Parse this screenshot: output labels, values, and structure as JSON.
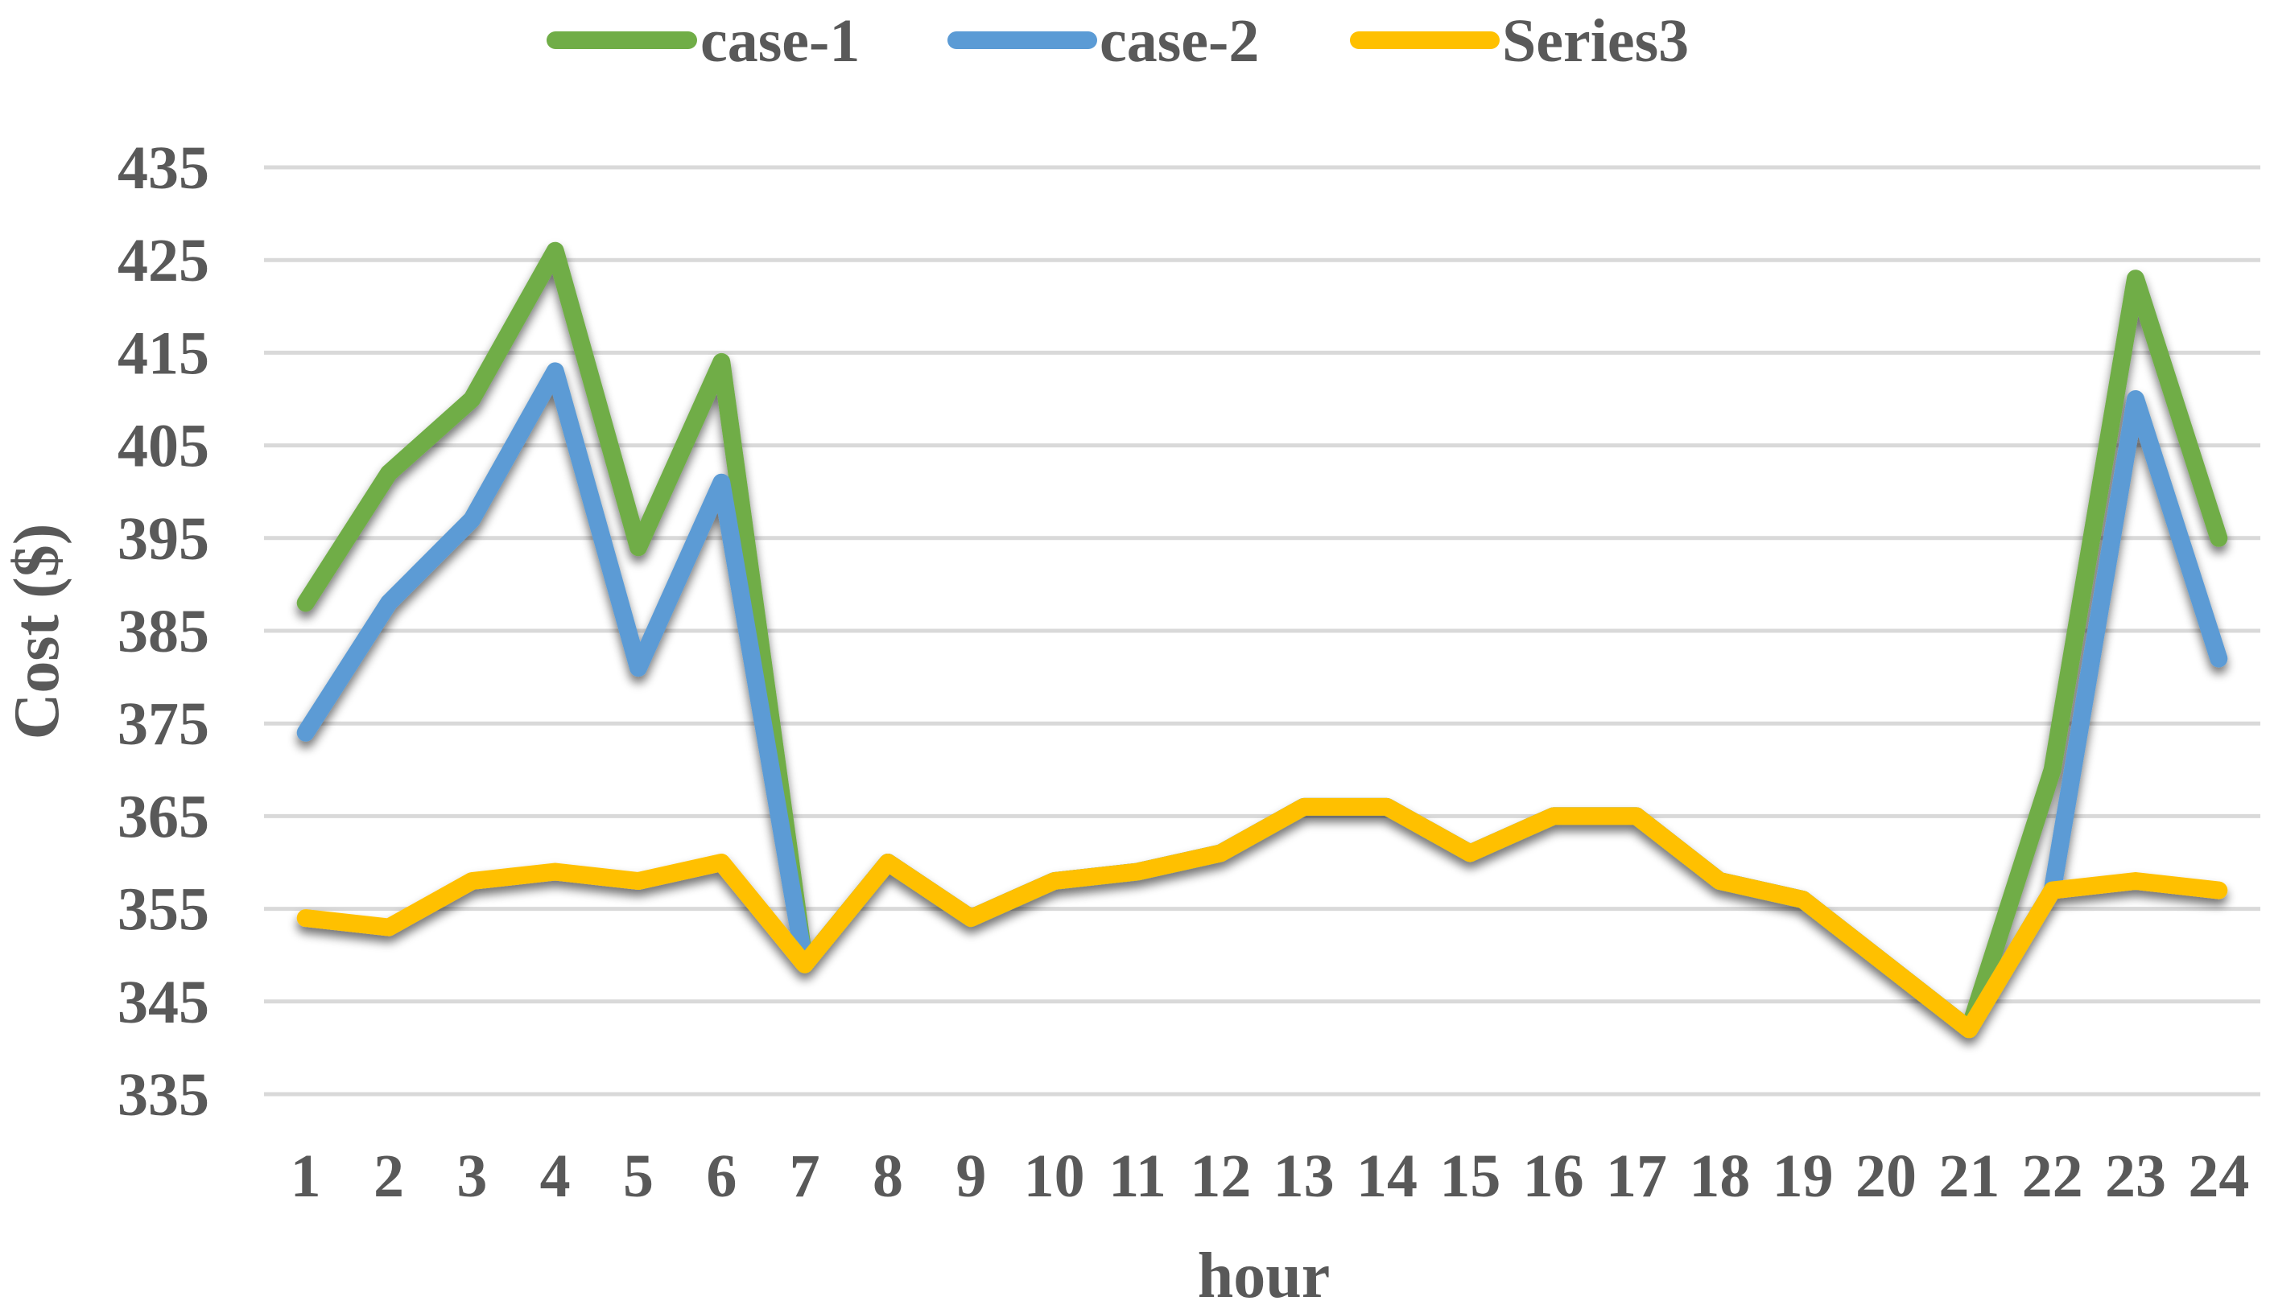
{
  "chart_data": {
    "type": "line",
    "title": "",
    "xlabel": "hour",
    "ylabel": "Cost ($)",
    "ylim": [
      335,
      435
    ],
    "yticks": [
      335,
      345,
      355,
      365,
      375,
      385,
      395,
      405,
      415,
      425,
      435
    ],
    "categories": [
      "1",
      "2",
      "3",
      "4",
      "5",
      "6",
      "7",
      "8",
      "9",
      "10",
      "11",
      "12",
      "13",
      "14",
      "15",
      "16",
      "17",
      "18",
      "19",
      "20",
      "21",
      "22",
      "23",
      "24"
    ],
    "grid": true,
    "legend_position": "top",
    "series": [
      {
        "name": "case-1",
        "color": "#70ad47",
        "values": [
          388,
          402,
          410,
          426,
          394,
          414,
          349,
          360,
          354,
          358,
          359,
          361,
          366,
          366,
          361,
          365,
          365,
          358,
          356,
          349,
          342,
          370,
          423,
          395
        ]
      },
      {
        "name": "case-2",
        "color": "#5b9bd5",
        "values": [
          374,
          388,
          397,
          413,
          381,
          401,
          349,
          360,
          354,
          358,
          359,
          361,
          366,
          366,
          361,
          365,
          365,
          358,
          356,
          349,
          342,
          357,
          410,
          382
        ]
      },
      {
        "name": "Series3",
        "color": "#ffc000",
        "values": [
          354,
          353,
          358,
          359,
          358,
          360,
          349,
          360,
          354,
          358,
          359,
          361,
          366,
          366,
          361,
          365,
          365,
          358,
          356,
          349,
          342,
          357,
          358,
          357
        ]
      }
    ]
  }
}
